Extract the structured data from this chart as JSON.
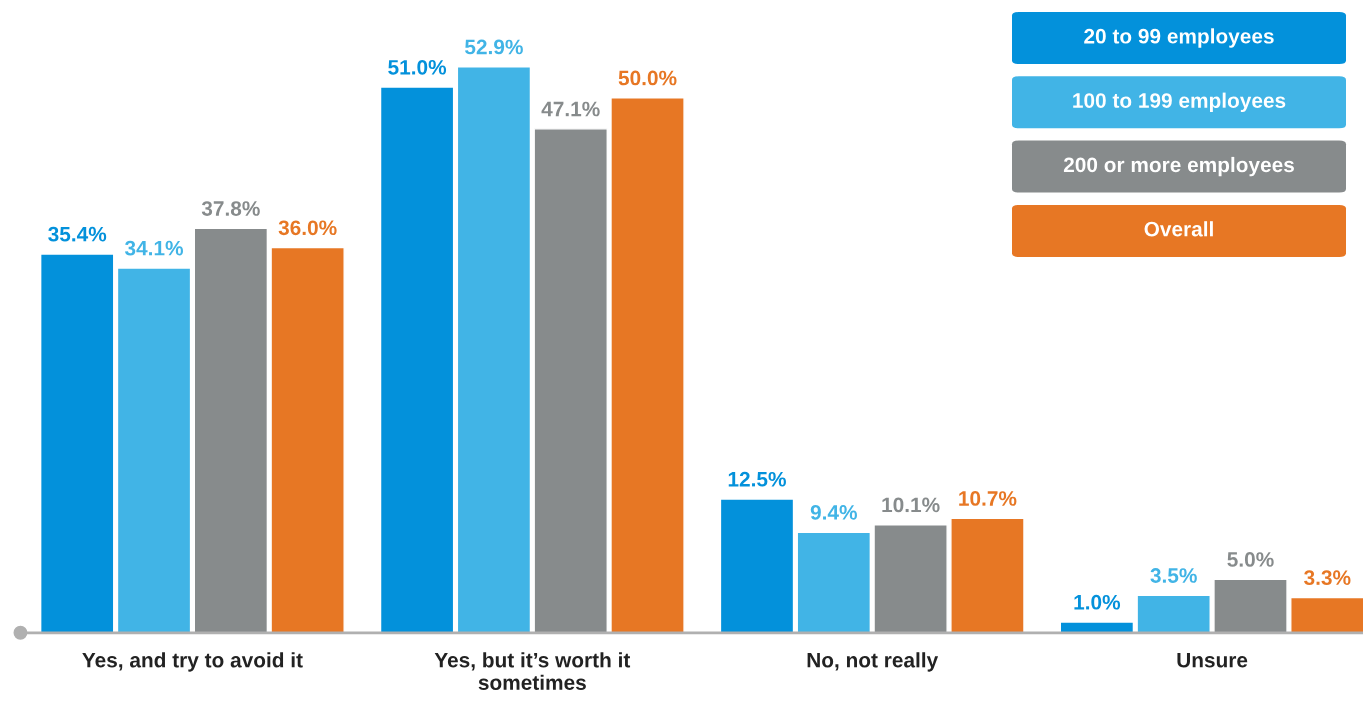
{
  "chart_data": {
    "type": "bar",
    "categories": [
      "Yes, and try to avoid it",
      "Yes, but it’s worth it\nsometimes",
      "No, not really",
      "Unsure"
    ],
    "series": [
      {
        "name": "20 to 99 employees",
        "color": "#0391db",
        "values": [
          35.4,
          51.0,
          12.5,
          1.0
        ],
        "value_labels": [
          "35.4%",
          "51.0%",
          "12.5%",
          "1.0%"
        ]
      },
      {
        "name": "100 to 199 employees",
        "color": "#41b4e6",
        "values": [
          34.1,
          52.9,
          9.4,
          3.5
        ],
        "value_labels": [
          "34.1%",
          "52.9%",
          "9.4%",
          "3.5%"
        ]
      },
      {
        "name": "200 or more employees",
        "color": "#878b8c",
        "values": [
          37.8,
          47.1,
          10.1,
          5.0
        ],
        "value_labels": [
          "37.8%",
          "47.1%",
          "10.1%",
          "5.0%"
        ]
      },
      {
        "name": "Overall",
        "color": "#e77724",
        "values": [
          36.0,
          50.0,
          10.7,
          3.3
        ],
        "value_labels": [
          "36.0%",
          "50.0%",
          "10.7%",
          "3.3%"
        ]
      }
    ],
    "tick_labels": "x",
    "legend": "top right"
  }
}
